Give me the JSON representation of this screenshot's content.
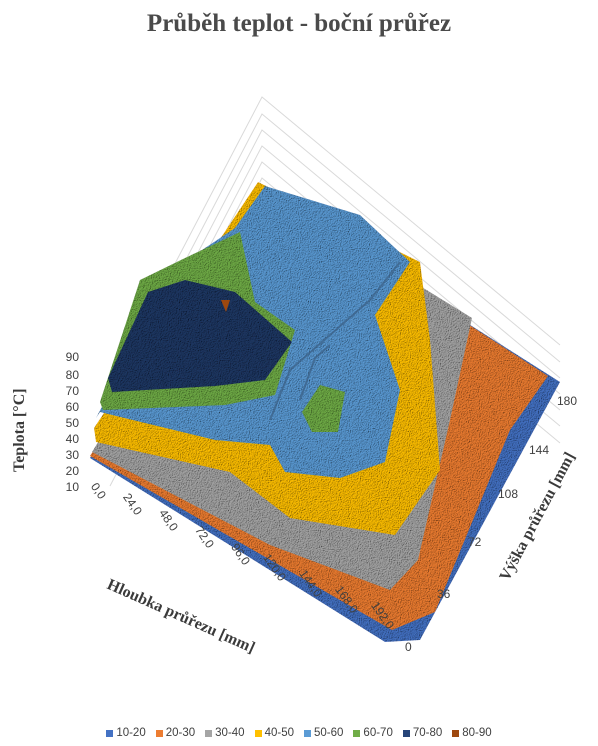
{
  "chart_data": {
    "type": "surface",
    "title": "Průběh teplot - boční průřez",
    "zlabel": "Teplota [°C]",
    "xlabel": "Hloubka průřezu [mm]",
    "ylabel": "Výška průřezu [mm]",
    "z_ticks": [
      "10",
      "20",
      "30",
      "40",
      "50",
      "60",
      "70",
      "80",
      "90"
    ],
    "x_ticks": [
      "0,0",
      "24,0",
      "48,0",
      "72,0",
      "96,0",
      "120,0",
      "144,0",
      "168,0",
      "192,0"
    ],
    "y_ticks": [
      "0",
      "36",
      "72",
      "108",
      "144",
      "180"
    ],
    "zlim": [
      10,
      90
    ],
    "legend_position": "bottom",
    "legend": [
      {
        "label": "10-20",
        "color": "#4472c4"
      },
      {
        "label": "20-30",
        "color": "#ed7d31"
      },
      {
        "label": "30-40",
        "color": "#a5a5a5"
      },
      {
        "label": "40-50",
        "color": "#ffc000"
      },
      {
        "label": "50-60",
        "color": "#5b9bd5"
      },
      {
        "label": "60-70",
        "color": "#70ad47"
      },
      {
        "label": "70-80",
        "color": "#264478"
      },
      {
        "label": "80-90",
        "color": "#9e480e"
      }
    ]
  }
}
